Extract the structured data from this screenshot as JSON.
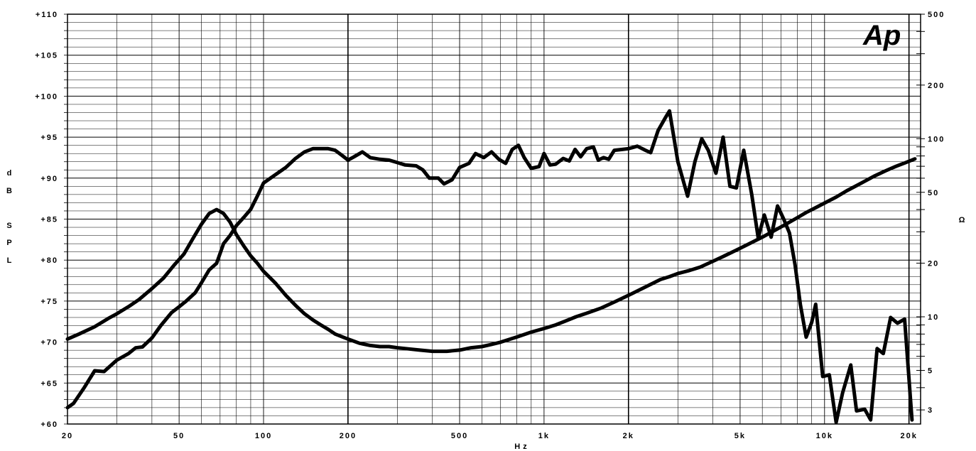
{
  "chart_data": {
    "type": "line",
    "logo": "Ap",
    "xlabel": "Hz",
    "ylabel_left": [
      "d",
      "B",
      "S",
      "P",
      "L"
    ],
    "ylabel_right": "Ω",
    "x_scale": "log",
    "xlim": [
      20,
      22000
    ],
    "ylim_left": [
      60,
      110
    ],
    "ylim_right": [
      2.5,
      500
    ],
    "y_right_scale": "log",
    "grid": true,
    "x_ticks": [
      {
        "v": 20,
        "label": "20"
      },
      {
        "v": 50,
        "label": "50"
      },
      {
        "v": 100,
        "label": "100"
      },
      {
        "v": 200,
        "label": "200"
      },
      {
        "v": 500,
        "label": "500"
      },
      {
        "v": 1000,
        "label": "1k"
      },
      {
        "v": 2000,
        "label": "2k"
      },
      {
        "v": 5000,
        "label": "5k"
      },
      {
        "v": 10000,
        "label": "10k"
      },
      {
        "v": 20000,
        "label": "20k"
      }
    ],
    "y_left_ticks": [
      {
        "v": 110,
        "label": "+110"
      },
      {
        "v": 105,
        "label": "+105"
      },
      {
        "v": 100,
        "label": "+100"
      },
      {
        "v": 95,
        "label": "+95"
      },
      {
        "v": 90,
        "label": "+90"
      },
      {
        "v": 85,
        "label": "+85"
      },
      {
        "v": 80,
        "label": "+80"
      },
      {
        "v": 75,
        "label": "+75"
      },
      {
        "v": 70,
        "label": "+70"
      },
      {
        "v": 65,
        "label": "+65"
      },
      {
        "v": 60,
        "label": "+60"
      }
    ],
    "y_right_ticks": [
      {
        "v": 500,
        "label": "500"
      },
      {
        "v": 200,
        "label": "200"
      },
      {
        "v": 100,
        "label": "100"
      },
      {
        "v": 50,
        "label": "50"
      },
      {
        "v": 20,
        "label": "20"
      },
      {
        "v": 10,
        "label": "10"
      },
      {
        "v": 5,
        "label": "5"
      },
      {
        "v": 3,
        "label": "3"
      }
    ],
    "series": [
      {
        "axis": "left",
        "points": [
          [
            20,
            62
          ],
          [
            21,
            62.5
          ],
          [
            23,
            64.5
          ],
          [
            25,
            66.5
          ],
          [
            27,
            66.4
          ],
          [
            30,
            67.8
          ],
          [
            33,
            68.6
          ],
          [
            35,
            69.3
          ],
          [
            37,
            69.4
          ],
          [
            40,
            70.5
          ],
          [
            43,
            72
          ],
          [
            47,
            73.6
          ],
          [
            50,
            74.3
          ],
          [
            53,
            75
          ],
          [
            57,
            76
          ],
          [
            60,
            77.2
          ],
          [
            64,
            78.8
          ],
          [
            68,
            79.6
          ],
          [
            72,
            82
          ],
          [
            76,
            83
          ],
          [
            80,
            84.2
          ],
          [
            85,
            85.2
          ],
          [
            90,
            86.2
          ],
          [
            95,
            87.8
          ],
          [
            100,
            89.4
          ],
          [
            110,
            90.4
          ],
          [
            120,
            91.3
          ],
          [
            130,
            92.4
          ],
          [
            140,
            93.2
          ],
          [
            150,
            93.6
          ],
          [
            160,
            93.6
          ],
          [
            170,
            93.6
          ],
          [
            180,
            93.4
          ],
          [
            190,
            92.8
          ],
          [
            200,
            92.2
          ],
          [
            210,
            92.6
          ],
          [
            225,
            93.2
          ],
          [
            240,
            92.5
          ],
          [
            260,
            92.3
          ],
          [
            280,
            92.2
          ],
          [
            300,
            91.9
          ],
          [
            320,
            91.6
          ],
          [
            350,
            91.5
          ],
          [
            370,
            91
          ],
          [
            390,
            90
          ],
          [
            420,
            90
          ],
          [
            440,
            89.3
          ],
          [
            470,
            89.8
          ],
          [
            500,
            91.3
          ],
          [
            540,
            91.8
          ],
          [
            570,
            93
          ],
          [
            610,
            92.5
          ],
          [
            650,
            93.2
          ],
          [
            690,
            92.3
          ],
          [
            730,
            91.8
          ],
          [
            770,
            93.5
          ],
          [
            810,
            94
          ],
          [
            850,
            92.5
          ],
          [
            900,
            91.2
          ],
          [
            960,
            91.4
          ],
          [
            1000,
            93
          ],
          [
            1050,
            91.6
          ],
          [
            1100,
            91.7
          ],
          [
            1170,
            92.4
          ],
          [
            1230,
            92.1
          ],
          [
            1290,
            93.5
          ],
          [
            1350,
            92.6
          ],
          [
            1420,
            93.6
          ],
          [
            1500,
            93.8
          ],
          [
            1560,
            92.2
          ],
          [
            1630,
            92.5
          ],
          [
            1700,
            92.3
          ],
          [
            1780,
            93.4
          ],
          [
            1900,
            93.5
          ],
          [
            2000,
            93.6
          ],
          [
            2150,
            93.9
          ],
          [
            2300,
            93.4
          ],
          [
            2400,
            93.1
          ],
          [
            2550,
            95.8
          ],
          [
            2700,
            97.3
          ],
          [
            2800,
            98.2
          ],
          [
            3000,
            92
          ],
          [
            3250,
            87.8
          ],
          [
            3450,
            92
          ],
          [
            3650,
            94.8
          ],
          [
            3850,
            93.4
          ],
          [
            4100,
            90.6
          ],
          [
            4350,
            95
          ],
          [
            4600,
            89
          ],
          [
            4850,
            88.8
          ],
          [
            5150,
            93.4
          ],
          [
            5500,
            88
          ],
          [
            5800,
            82.7
          ],
          [
            6100,
            85.5
          ],
          [
            6450,
            82.8
          ],
          [
            6800,
            86.6
          ],
          [
            7150,
            85
          ],
          [
            7500,
            83.3
          ],
          [
            7850,
            79.4
          ],
          [
            8200,
            74.6
          ],
          [
            8600,
            70.6
          ],
          [
            9000,
            72.4
          ],
          [
            9300,
            74.6
          ],
          [
            9850,
            65.8
          ],
          [
            10400,
            66
          ],
          [
            11000,
            60.2
          ],
          [
            11600,
            63.8
          ],
          [
            12400,
            67.2
          ],
          [
            13000,
            61.6
          ],
          [
            13900,
            61.8
          ],
          [
            14600,
            60.5
          ],
          [
            15400,
            69.2
          ],
          [
            16200,
            68.6
          ],
          [
            17200,
            73
          ],
          [
            18200,
            72.3
          ],
          [
            19300,
            72.8
          ],
          [
            20500,
            60.5
          ]
        ]
      },
      {
        "axis": "right",
        "points": [
          [
            20,
            7.5
          ],
          [
            22,
            8
          ],
          [
            25,
            8.8
          ],
          [
            28,
            9.8
          ],
          [
            30,
            10.4
          ],
          [
            33,
            11.4
          ],
          [
            36,
            12.5
          ],
          [
            40,
            14.4
          ],
          [
            44,
            16.5
          ],
          [
            48,
            19.5
          ],
          [
            52,
            22.5
          ],
          [
            56,
            27.5
          ],
          [
            60,
            33
          ],
          [
            64,
            38
          ],
          [
            68,
            40
          ],
          [
            72,
            38
          ],
          [
            76,
            34
          ],
          [
            80,
            29
          ],
          [
            85,
            25
          ],
          [
            90,
            22
          ],
          [
            95,
            20
          ],
          [
            100,
            18
          ],
          [
            110,
            15.5
          ],
          [
            120,
            13.2
          ],
          [
            130,
            11.6
          ],
          [
            140,
            10.4
          ],
          [
            150,
            9.6
          ],
          [
            160,
            9
          ],
          [
            170,
            8.5
          ],
          [
            180,
            8
          ],
          [
            200,
            7.5
          ],
          [
            220,
            7.1
          ],
          [
            240,
            6.9
          ],
          [
            260,
            6.8
          ],
          [
            280,
            6.8
          ],
          [
            300,
            6.7
          ],
          [
            330,
            6.6
          ],
          [
            360,
            6.5
          ],
          [
            400,
            6.4
          ],
          [
            450,
            6.4
          ],
          [
            500,
            6.5
          ],
          [
            550,
            6.7
          ],
          [
            600,
            6.8
          ],
          [
            650,
            7
          ],
          [
            700,
            7.2
          ],
          [
            800,
            7.7
          ],
          [
            900,
            8.2
          ],
          [
            1000,
            8.6
          ],
          [
            1100,
            9
          ],
          [
            1200,
            9.5
          ],
          [
            1300,
            10
          ],
          [
            1400,
            10.4
          ],
          [
            1500,
            10.8
          ],
          [
            1600,
            11.2
          ],
          [
            1700,
            11.7
          ],
          [
            1800,
            12.2
          ],
          [
            2000,
            13.2
          ],
          [
            2200,
            14.2
          ],
          [
            2400,
            15.2
          ],
          [
            2600,
            16.2
          ],
          [
            2800,
            16.8
          ],
          [
            3000,
            17.5
          ],
          [
            3300,
            18.2
          ],
          [
            3600,
            19
          ],
          [
            4000,
            20.5
          ],
          [
            4400,
            22
          ],
          [
            4800,
            23.5
          ],
          [
            5200,
            25
          ],
          [
            5600,
            26.5
          ],
          [
            6000,
            28
          ],
          [
            6500,
            30
          ],
          [
            7000,
            32
          ],
          [
            7500,
            34
          ],
          [
            8000,
            36
          ],
          [
            8600,
            38.5
          ],
          [
            9300,
            41
          ],
          [
            10000,
            43.5
          ],
          [
            11000,
            47
          ],
          [
            12000,
            51
          ],
          [
            13000,
            54.5
          ],
          [
            14000,
            58
          ],
          [
            15000,
            61.5
          ],
          [
            16500,
            66
          ],
          [
            18000,
            70
          ],
          [
            19500,
            73.5
          ],
          [
            21000,
            77
          ]
        ]
      }
    ]
  }
}
